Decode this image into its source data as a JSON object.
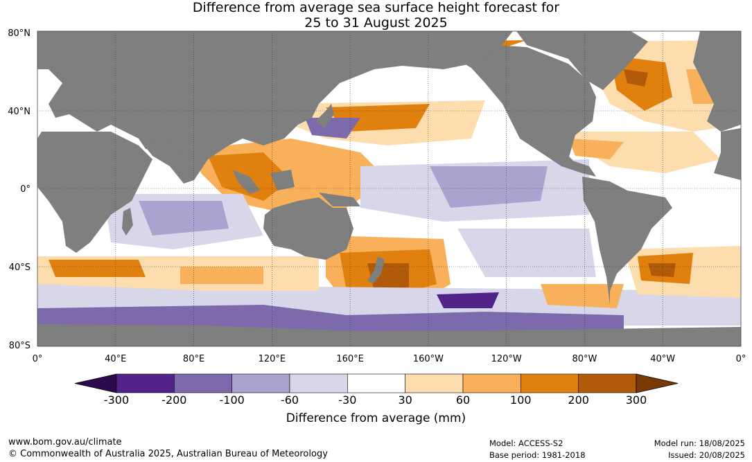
{
  "title": {
    "line1": "Difference from average sea surface height forecast for",
    "line2": "25 to 31 August 2025"
  },
  "axes": {
    "lat_labels": [
      "80°N",
      "40°N",
      "0°",
      "40°S",
      "80°S"
    ],
    "lon_labels": [
      "0°",
      "40°E",
      "80°E",
      "120°E",
      "160°E",
      "160°W",
      "120°W",
      "80°W",
      "40°W",
      "0°"
    ]
  },
  "colorbar": {
    "title": "Difference from average (mm)",
    "tick_labels": [
      "-300",
      "-200",
      "-100",
      "-60",
      "-30",
      "30",
      "60",
      "100",
      "200",
      "300"
    ],
    "colors": [
      "#2d0a4e",
      "#52248a",
      "#7c6aac",
      "#aaa3cf",
      "#d8d7ea",
      "#ffffff",
      "#fddcae",
      "#f8b05a",
      "#e0800f",
      "#b05a0a",
      "#7a3a05"
    ]
  },
  "colors": {
    "land": "#7f7f7f",
    "ocean_neutral": "#ffffff",
    "grid": "#333333"
  },
  "footer": {
    "website": "www.bom.gov.au/climate",
    "copyright": "© Commonwealth of Australia 2025, Australian Bureau of Meteorology",
    "model": "Model: ACCESS-S2",
    "base_period": "Base period: 1981-2018",
    "model_run": "Model run: 18/08/2025",
    "issued": "Issued: 20/08/2025"
  }
}
